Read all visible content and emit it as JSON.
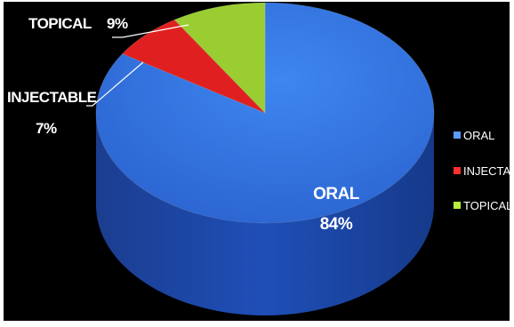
{
  "chart_data": {
    "type": "pie",
    "title": "",
    "categories": [
      "ORAL",
      "INJECTABLE",
      "TOPICAL"
    ],
    "values": [
      84,
      7,
      9
    ],
    "units": "%",
    "data_labels": [
      {
        "name": "ORAL",
        "value": "84%"
      },
      {
        "name": "INJECTABLE",
        "value": "7%"
      },
      {
        "name": "TOPICAL",
        "value": "9%"
      }
    ],
    "colors": [
      "#2e6fe0",
      "#e02020",
      "#9acd32"
    ],
    "legend": {
      "position": "right",
      "entries": [
        "ORAL",
        "INJECTABLE",
        "TOPICAL"
      ]
    },
    "style": "3d-pie"
  }
}
